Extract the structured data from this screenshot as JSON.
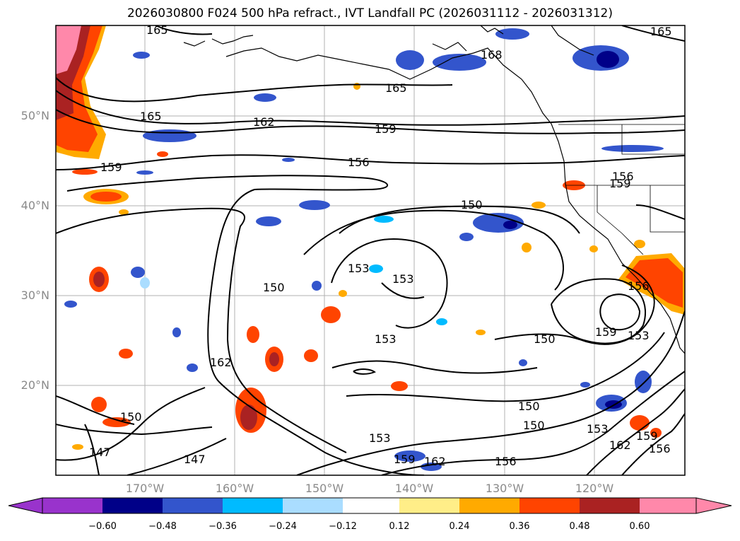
{
  "title": "2026030800 F024 500 hPa refract., IVT Landfall PC (2026031112 - 2026031312)",
  "lat_labels": [
    "50°N",
    "40°N",
    "30°N",
    "20°N"
  ],
  "lon_labels": [
    "170°W",
    "160°W",
    "150°W",
    "140°W",
    "130°W",
    "120°W"
  ],
  "contour_labels": [
    "165",
    "168",
    "165",
    "165",
    "162",
    "159",
    "159",
    "156",
    "156",
    "159",
    "150",
    "153",
    "153",
    "150",
    "153",
    "159",
    "153",
    "150",
    "150",
    "150",
    "162",
    "150",
    "147",
    "147",
    "153",
    "159",
    "162",
    "156",
    "162",
    "159",
    "156",
    "156",
    "153",
    "165"
  ],
  "colorbar": {
    "ticks": [
      "−0.60",
      "−0.48",
      "−0.36",
      "−0.24",
      "−0.12",
      "0.12",
      "0.24",
      "0.36",
      "0.48",
      "0.60"
    ],
    "colors": [
      "#9933cc",
      "#000088",
      "#3355cc",
      "#00bbff",
      "#aaddff",
      "#ffffff",
      "#ffee88",
      "#ffaa00",
      "#ff4400",
      "#aa2222",
      "#ff88aa"
    ]
  },
  "palette": {
    "neg_light": "#aaddff",
    "neg_mid": "#3355cc",
    "neg_dark": "#000088",
    "pos_light": "#ffee88",
    "pos_mid": "#ffaa00",
    "pos_orange": "#ff4400",
    "pos_dark": "#aa2222",
    "pos_pink": "#ff88aa"
  }
}
